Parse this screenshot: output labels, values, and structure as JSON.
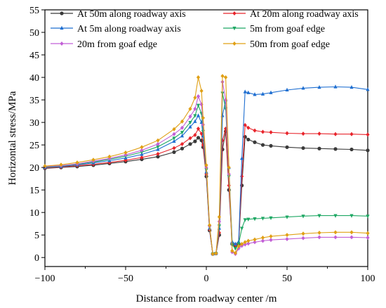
{
  "chart_data": {
    "type": "line",
    "xlabel": "Distance from roadway center /m",
    "ylabel": "Horizontal stress/MPa",
    "xlim": [
      -100,
      100
    ],
    "ylim": [
      -2,
      55
    ],
    "xticks": [
      -100,
      -50,
      0,
      50,
      100
    ],
    "yticks": [
      0,
      5,
      10,
      15,
      20,
      25,
      30,
      35,
      40,
      45,
      50,
      55
    ],
    "grid": false,
    "legend": "top",
    "series": [
      {
        "name": "At 50m along roadway axis",
        "color": "#3a3a3a",
        "marker": "circle",
        "x": [
          -100,
          -90,
          -80,
          -70,
          -60,
          -50,
          -40,
          -30,
          -20,
          -15,
          -10,
          -7,
          -5,
          -3,
          -2,
          0,
          2,
          4,
          6,
          8,
          10,
          12,
          14,
          16,
          18,
          20,
          22,
          24,
          26,
          30,
          35,
          40,
          50,
          60,
          70,
          80,
          90,
          100
        ],
        "y": [
          19.8,
          20.0,
          20.2,
          20.5,
          20.9,
          21.3,
          21.8,
          22.4,
          23.4,
          24.2,
          25.2,
          25.8,
          26.6,
          26.0,
          24.5,
          18.0,
          6.0,
          0.8,
          0.9,
          5.0,
          24.0,
          28.0,
          15.0,
          3.0,
          2.6,
          3.0,
          16.0,
          26.8,
          26.2,
          25.6,
          25.0,
          24.8,
          24.5,
          24.3,
          24.2,
          24.1,
          24.0,
          23.8
        ]
      },
      {
        "name": "At 20m along roadway axis",
        "color": "#e8242b",
        "marker": "diamond",
        "x": [
          -100,
          -90,
          -80,
          -70,
          -60,
          -50,
          -40,
          -30,
          -20,
          -15,
          -10,
          -7,
          -5,
          -3,
          -2,
          0,
          2,
          4,
          6,
          8,
          10,
          12,
          14,
          16,
          18,
          20,
          22,
          24,
          26,
          30,
          35,
          40,
          50,
          60,
          70,
          80,
          90,
          100
        ],
        "y": [
          19.9,
          20.1,
          20.4,
          20.7,
          21.1,
          21.6,
          22.2,
          23.0,
          24.3,
          25.2,
          26.5,
          27.2,
          28.6,
          27.5,
          25.0,
          18.5,
          6.2,
          0.8,
          0.9,
          5.5,
          26.0,
          28.6,
          16.0,
          3.2,
          2.8,
          3.2,
          18.0,
          29.4,
          28.8,
          28.2,
          27.9,
          27.8,
          27.6,
          27.5,
          27.5,
          27.4,
          27.4,
          27.3
        ]
      },
      {
        "name": "At  5m along roadway axis",
        "color": "#1f6fd1",
        "marker": "triangle-up",
        "x": [
          -100,
          -90,
          -80,
          -70,
          -60,
          -50,
          -40,
          -30,
          -20,
          -15,
          -10,
          -7,
          -5,
          -3,
          -2,
          0,
          2,
          4,
          6,
          8,
          10,
          12,
          14,
          16,
          18,
          20,
          22,
          24,
          26,
          30,
          35,
          40,
          50,
          60,
          70,
          80,
          90,
          100
        ],
        "y": [
          20.0,
          20.2,
          20.6,
          21.0,
          21.5,
          22.1,
          22.9,
          24.0,
          25.8,
          27.0,
          29.0,
          30.2,
          31.5,
          30.0,
          27.0,
          19.0,
          6.5,
          0.8,
          0.9,
          6.5,
          31.5,
          35.0,
          20.0,
          3.5,
          3.0,
          3.5,
          22.0,
          36.8,
          36.6,
          36.2,
          36.3,
          36.6,
          37.2,
          37.6,
          37.8,
          37.9,
          37.8,
          37.3
        ]
      },
      {
        "name": "5m from goaf edge",
        "color": "#1fa864",
        "marker": "triangle-down",
        "x": [
          -100,
          -90,
          -80,
          -70,
          -60,
          -50,
          -40,
          -30,
          -20,
          -15,
          -10,
          -7,
          -5,
          -3,
          -2,
          0,
          2,
          4,
          6,
          8,
          10,
          12,
          14,
          16,
          18,
          20,
          22,
          24,
          26,
          30,
          35,
          40,
          50,
          60,
          70,
          80,
          90,
          100
        ],
        "y": [
          20.1,
          20.3,
          20.7,
          21.2,
          21.8,
          22.5,
          23.4,
          24.6,
          26.5,
          27.8,
          30.0,
          31.5,
          33.8,
          32.0,
          28.0,
          19.5,
          6.8,
          0.8,
          0.9,
          7.0,
          36.5,
          33.0,
          18.0,
          2.8,
          2.0,
          3.0,
          6.5,
          8.4,
          8.5,
          8.6,
          8.7,
          8.8,
          9.0,
          9.2,
          9.3,
          9.3,
          9.3,
          9.2
        ]
      },
      {
        "name": "20m from goaf edge",
        "color": "#c25fd6",
        "marker": "diamond",
        "x": [
          -100,
          -90,
          -80,
          -70,
          -60,
          -50,
          -40,
          -30,
          -20,
          -15,
          -10,
          -7,
          -5,
          -3,
          -2,
          0,
          2,
          4,
          6,
          8,
          10,
          12,
          14,
          16,
          18,
          20,
          22,
          24,
          26,
          30,
          35,
          40,
          50,
          60,
          70,
          80,
          90,
          100
        ],
        "y": [
          20.2,
          20.4,
          20.8,
          21.4,
          22.0,
          22.8,
          23.8,
          25.2,
          27.4,
          28.8,
          31.3,
          33.0,
          35.8,
          34.0,
          29.5,
          20.0,
          7.0,
          0.8,
          0.9,
          8.0,
          39.0,
          35.0,
          18.5,
          1.2,
          0.8,
          2.0,
          2.6,
          2.9,
          3.1,
          3.4,
          3.7,
          3.9,
          4.1,
          4.3,
          4.5,
          4.5,
          4.5,
          4.4
        ]
      },
      {
        "name": "50m from goaf edge",
        "color": "#e0a015",
        "marker": "diamond",
        "x": [
          -100,
          -90,
          -80,
          -70,
          -60,
          -50,
          -40,
          -30,
          -20,
          -15,
          -10,
          -7,
          -5,
          -3,
          -2,
          0,
          2,
          4,
          6,
          8,
          10,
          12,
          14,
          16,
          18,
          20,
          22,
          24,
          26,
          30,
          35,
          40,
          50,
          60,
          70,
          80,
          90,
          100
        ],
        "y": [
          20.3,
          20.6,
          21.1,
          21.7,
          22.4,
          23.3,
          24.5,
          26.0,
          28.5,
          30.2,
          33.0,
          35.5,
          40.0,
          37.0,
          31.0,
          20.5,
          7.2,
          0.8,
          0.9,
          9.0,
          40.3,
          40.0,
          20.0,
          1.5,
          1.0,
          2.5,
          3.0,
          3.4,
          3.7,
          4.0,
          4.4,
          4.7,
          5.0,
          5.3,
          5.5,
          5.6,
          5.6,
          5.4
        ]
      }
    ]
  }
}
